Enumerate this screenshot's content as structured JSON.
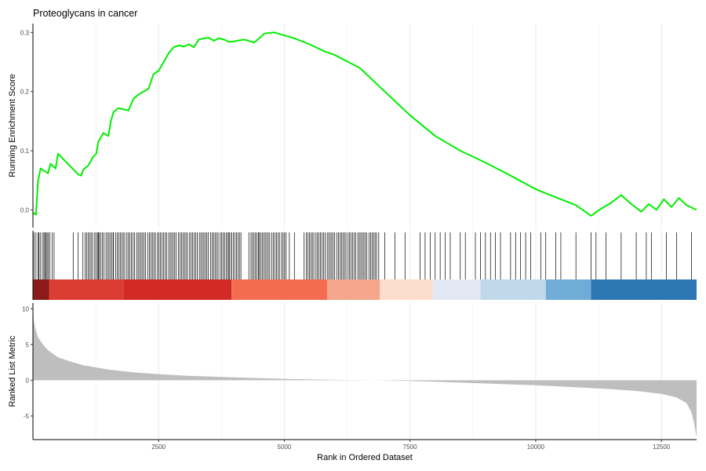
{
  "chart_data": {
    "type": "line",
    "title": "Proteoglycans in cancer",
    "xlabel": "Rank in Ordered Dataset",
    "xlim": [
      0,
      13200
    ],
    "x_ticks": [
      2500,
      5000,
      7500,
      10000,
      12500
    ],
    "x_tick_labels": [
      "2500",
      "5000",
      "7500",
      "10000",
      "12500"
    ],
    "grid": "vertical-major",
    "colors": {
      "running_score": "#00ee00",
      "hit_lines": "#000000",
      "metric_area": "#bebebe",
      "axis": "#000000",
      "grid": "#ebebeb"
    },
    "enrichment": {
      "ylabel": "Running Enrichment Score",
      "ylim": [
        -0.03,
        0.315
      ],
      "y_ticks": [
        0.0,
        0.1,
        0.2,
        0.3
      ],
      "y_tick_labels": [
        "0.0",
        "0.1",
        "0.2",
        "0.3"
      ],
      "x": [
        0,
        60,
        100,
        150,
        300,
        350,
        450,
        480,
        500,
        900,
        960,
        1000,
        1100,
        1200,
        1260,
        1300,
        1400,
        1500,
        1550,
        1600,
        1700,
        1800,
        1900,
        2000,
        2100,
        2200,
        2300,
        2400,
        2500,
        2600,
        2700,
        2800,
        2900,
        3000,
        3100,
        3200,
        3300,
        3400,
        3500,
        3600,
        3700,
        3800,
        3900,
        4000,
        4200,
        4400,
        4500,
        4600,
        4800,
        5000,
        5200,
        5500,
        5800,
        6000,
        6500,
        7000,
        7500,
        8000,
        8500,
        9000,
        9500,
        10000,
        10500,
        10800,
        11100,
        11300,
        11500,
        11700,
        11900,
        12100,
        12250,
        12400,
        12550,
        12700,
        12850,
        13000,
        13200
      ],
      "y": [
        -0.005,
        -0.008,
        0.048,
        0.07,
        0.062,
        0.078,
        0.07,
        0.085,
        0.095,
        0.06,
        0.058,
        0.068,
        0.075,
        0.09,
        0.095,
        0.115,
        0.13,
        0.125,
        0.15,
        0.165,
        0.172,
        0.17,
        0.168,
        0.188,
        0.195,
        0.2,
        0.205,
        0.23,
        0.235,
        0.25,
        0.265,
        0.275,
        0.278,
        0.276,
        0.28,
        0.275,
        0.288,
        0.29,
        0.291,
        0.286,
        0.29,
        0.288,
        0.284,
        0.285,
        0.288,
        0.283,
        0.29,
        0.298,
        0.3,
        0.295,
        0.29,
        0.28,
        0.268,
        0.262,
        0.24,
        0.2,
        0.16,
        0.125,
        0.1,
        0.08,
        0.058,
        0.035,
        0.018,
        0.008,
        -0.01,
        0.002,
        0.012,
        0.025,
        0.01,
        -0.003,
        0.01,
        0.0,
        0.018,
        0.005,
        0.02,
        0.008,
        0.0
      ]
    },
    "hits": {
      "dense_ranges": [
        [
          150,
          350
        ],
        [
          1000,
          3950
        ],
        [
          3950,
          4150
        ],
        [
          4300,
          5050
        ],
        [
          5400,
          6900
        ]
      ],
      "dense_spacing": 32,
      "positions": [
        20,
        60,
        100,
        120,
        240,
        280,
        380,
        420,
        800,
        900,
        1300,
        1600,
        3900,
        4500,
        5100,
        5200,
        7000,
        7200,
        7400,
        7700,
        7800,
        7900,
        8000,
        8100,
        8200,
        8300,
        8500,
        8600,
        8800,
        8900,
        9000,
        9100,
        9200,
        9300,
        9500,
        9600,
        9700,
        9800,
        9900,
        10100,
        10200,
        10400,
        10500,
        10800,
        11100,
        11200,
        11400,
        11700,
        12000,
        12200,
        12300,
        12600,
        12800,
        13100
      ]
    },
    "rank_colors": [
      {
        "start": 0,
        "end": 320,
        "color": "#8b1a1a"
      },
      {
        "start": 320,
        "end": 1800,
        "color": "#dc3d33"
      },
      {
        "start": 1800,
        "end": 3950,
        "color": "#d32a26"
      },
      {
        "start": 3950,
        "end": 5850,
        "color": "#f46c50"
      },
      {
        "start": 5850,
        "end": 6900,
        "color": "#f4a58b"
      },
      {
        "start": 6900,
        "end": 7950,
        "color": "#fbdccd"
      },
      {
        "start": 7950,
        "end": 8900,
        "color": "#e3e9f4"
      },
      {
        "start": 8900,
        "end": 10200,
        "color": "#c0d8e9"
      },
      {
        "start": 10200,
        "end": 11100,
        "color": "#6fadd7"
      },
      {
        "start": 11100,
        "end": 13200,
        "color": "#2d77b5"
      }
    ],
    "ranked_metric": {
      "ylabel": "Ranked List Metric",
      "ylim": [
        -8.3,
        10.8
      ],
      "y_ticks": [
        -5,
        0,
        5,
        10
      ],
      "y_tick_labels": [
        "-5",
        "0",
        "5",
        "10"
      ],
      "x": [
        0,
        20,
        50,
        100,
        200,
        300,
        500,
        800,
        1000,
        1500,
        2000,
        2500,
        3000,
        4000,
        5000,
        6000,
        6800,
        7500,
        8000,
        9000,
        10000,
        11000,
        11500,
        12000,
        12500,
        12800,
        13000,
        13100,
        13150,
        13200
      ],
      "y": [
        10,
        8.2,
        7.2,
        6,
        5,
        4.2,
        3.2,
        2.5,
        2.1,
        1.5,
        1.1,
        0.85,
        0.65,
        0.4,
        0.2,
        0.05,
        0,
        -0.1,
        -0.2,
        -0.45,
        -0.7,
        -1.05,
        -1.25,
        -1.5,
        -1.9,
        -2.4,
        -3.2,
        -4.5,
        -6,
        -8
      ]
    }
  }
}
